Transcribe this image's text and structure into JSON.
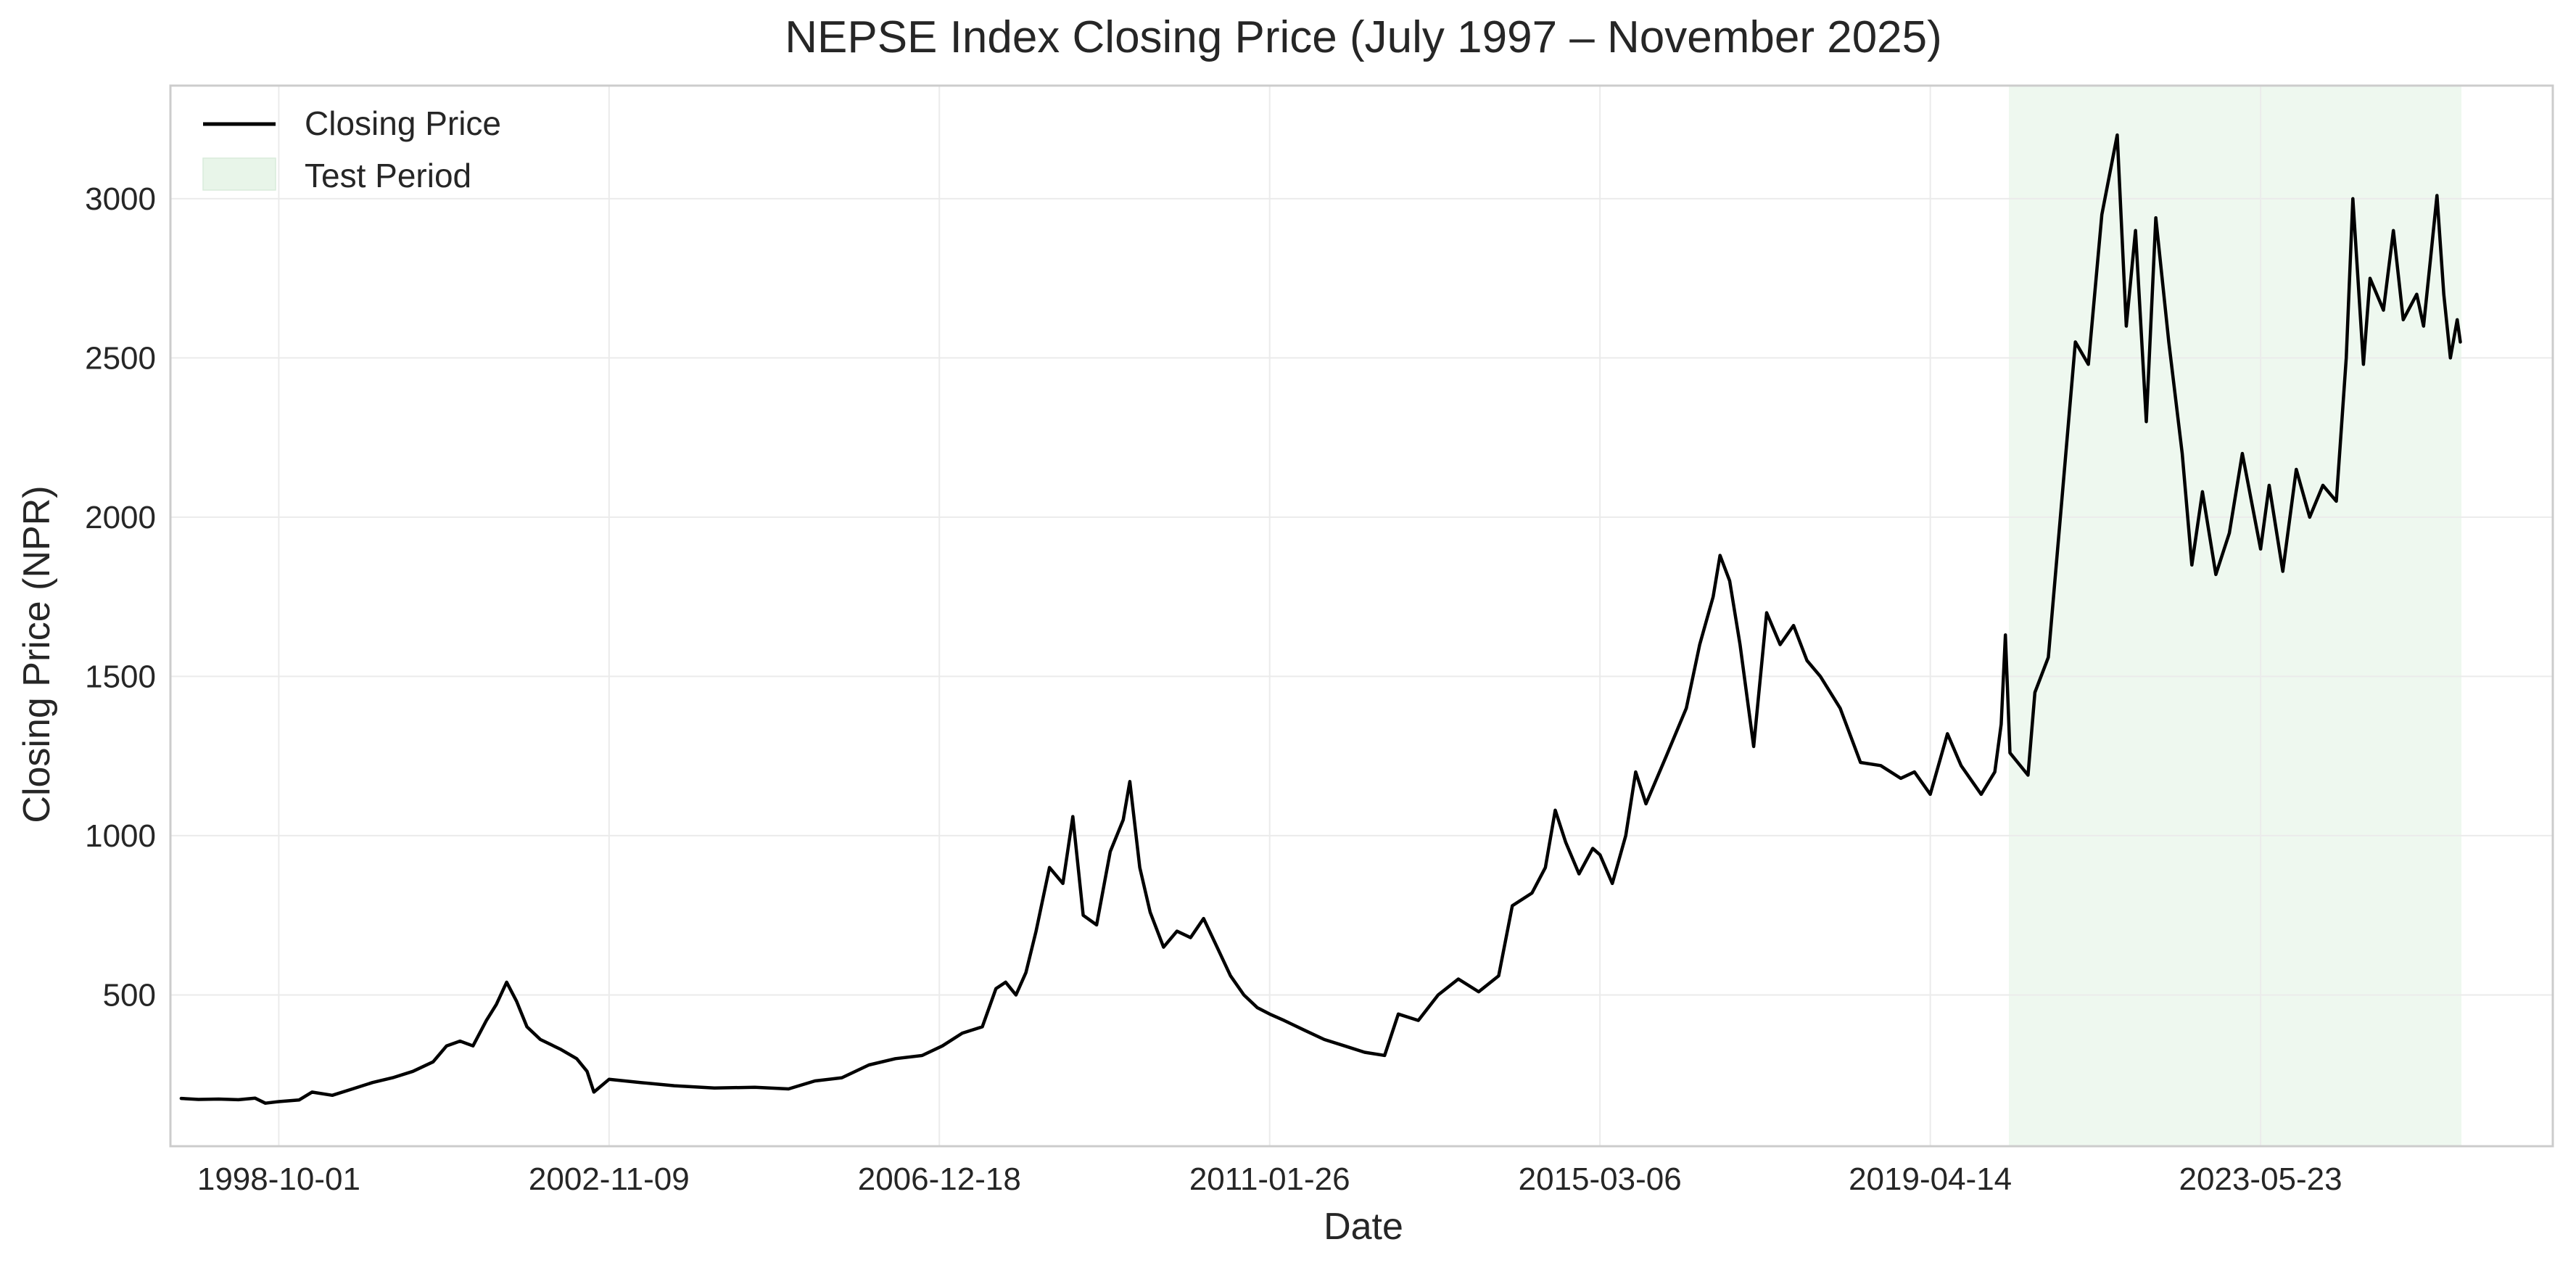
{
  "chart_data": {
    "type": "line",
    "title": "NEPSE Index Closing Price (July 1997 – November 2025)",
    "xlabel": "Date",
    "ylabel": "Closing Price (NPR)",
    "xlim": [
      "1997-05-27",
      "2027-01-09"
    ],
    "ylim": [
      25,
      3355
    ],
    "x_ticks": [
      "1998-10-01",
      "2002-11-09",
      "2006-12-18",
      "2011-01-26",
      "2015-03-06",
      "2019-04-14",
      "2023-05-23"
    ],
    "y_ticks": [
      500,
      1000,
      1500,
      2000,
      2500,
      3000
    ],
    "grid": true,
    "legend_position": "top-left",
    "legend": [
      {
        "label": "Closing Price",
        "kind": "line",
        "color": "#000000"
      },
      {
        "label": "Test Period",
        "kind": "patch",
        "color": "#e8f5e9"
      }
    ],
    "shaded_regions": [
      {
        "label": "Test Period",
        "start": "2020-04-05",
        "end": "2025-11-20",
        "color": "#e8f5e9"
      }
    ],
    "series": [
      {
        "name": "Closing Price",
        "color": "#000000",
        "points": [
          [
            "1997-07-15",
            175
          ],
          [
            "1997-10-01",
            172
          ],
          [
            "1998-01-01",
            173
          ],
          [
            "1998-04-01",
            171
          ],
          [
            "1998-06-15",
            176
          ],
          [
            "1998-08-01",
            160
          ],
          [
            "1998-10-01",
            165
          ],
          [
            "1999-01-01",
            170
          ],
          [
            "1999-03-01",
            195
          ],
          [
            "1999-06-01",
            185
          ],
          [
            "1999-09-01",
            205
          ],
          [
            "1999-12-01",
            225
          ],
          [
            "2000-03-01",
            240
          ],
          [
            "2000-06-01",
            260
          ],
          [
            "2000-09-01",
            290
          ],
          [
            "2000-11-01",
            340
          ],
          [
            "2001-01-01",
            355
          ],
          [
            "2001-03-01",
            340
          ],
          [
            "2001-05-01",
            420
          ],
          [
            "2001-06-15",
            470
          ],
          [
            "2001-08-01",
            540
          ],
          [
            "2001-09-15",
            480
          ],
          [
            "2001-11-01",
            400
          ],
          [
            "2002-01-01",
            360
          ],
          [
            "2002-04-01",
            330
          ],
          [
            "2002-06-15",
            300
          ],
          [
            "2002-08-01",
            260
          ],
          [
            "2002-09-01",
            195
          ],
          [
            "2002-11-09",
            235
          ],
          [
            "2003-04-01",
            225
          ],
          [
            "2003-09-01",
            215
          ],
          [
            "2004-03-01",
            208
          ],
          [
            "2004-09-01",
            210
          ],
          [
            "2005-02-01",
            205
          ],
          [
            "2005-06-01",
            230
          ],
          [
            "2005-10-01",
            240
          ],
          [
            "2006-02-01",
            280
          ],
          [
            "2006-06-01",
            300
          ],
          [
            "2006-10-01",
            310
          ],
          [
            "2007-01-01",
            340
          ],
          [
            "2007-04-01",
            380
          ],
          [
            "2007-07-01",
            400
          ],
          [
            "2007-09-01",
            520
          ],
          [
            "2007-10-15",
            540
          ],
          [
            "2007-12-01",
            500
          ],
          [
            "2008-01-15",
            570
          ],
          [
            "2008-03-01",
            700
          ],
          [
            "2008-05-01",
            900
          ],
          [
            "2008-07-01",
            850
          ],
          [
            "2008-08-15",
            1060
          ],
          [
            "2008-10-01",
            750
          ],
          [
            "2008-12-01",
            720
          ],
          [
            "2009-02-01",
            950
          ],
          [
            "2009-04-01",
            1050
          ],
          [
            "2009-05-01",
            1170
          ],
          [
            "2009-06-15",
            900
          ],
          [
            "2009-08-01",
            760
          ],
          [
            "2009-10-01",
            650
          ],
          [
            "2009-12-01",
            700
          ],
          [
            "2010-02-01",
            680
          ],
          [
            "2010-04-01",
            740
          ],
          [
            "2010-06-01",
            650
          ],
          [
            "2010-08-01",
            560
          ],
          [
            "2010-10-01",
            500
          ],
          [
            "2010-12-01",
            460
          ],
          [
            "2011-01-26",
            440
          ],
          [
            "2011-04-01",
            420
          ],
          [
            "2011-07-01",
            390
          ],
          [
            "2011-10-01",
            360
          ],
          [
            "2012-01-01",
            340
          ],
          [
            "2012-04-01",
            320
          ],
          [
            "2012-07-01",
            310
          ],
          [
            "2012-09-01",
            440
          ],
          [
            "2012-12-01",
            420
          ],
          [
            "2013-03-01",
            500
          ],
          [
            "2013-06-01",
            550
          ],
          [
            "2013-09-01",
            510
          ],
          [
            "2013-12-01",
            560
          ],
          [
            "2014-02-01",
            780
          ],
          [
            "2014-05-01",
            820
          ],
          [
            "2014-07-01",
            900
          ],
          [
            "2014-08-15",
            1080
          ],
          [
            "2014-10-01",
            980
          ],
          [
            "2014-12-01",
            880
          ],
          [
            "2015-02-01",
            960
          ],
          [
            "2015-03-06",
            940
          ],
          [
            "2015-05-01",
            850
          ],
          [
            "2015-07-01",
            1000
          ],
          [
            "2015-08-15",
            1200
          ],
          [
            "2015-10-01",
            1100
          ],
          [
            "2016-01-01",
            1250
          ],
          [
            "2016-04-01",
            1400
          ],
          [
            "2016-06-01",
            1600
          ],
          [
            "2016-08-01",
            1750
          ],
          [
            "2016-09-01",
            1880
          ],
          [
            "2016-10-15",
            1800
          ],
          [
            "2016-12-01",
            1600
          ],
          [
            "2017-02-01",
            1280
          ],
          [
            "2017-04-01",
            1700
          ],
          [
            "2017-06-01",
            1600
          ],
          [
            "2017-08-01",
            1660
          ],
          [
            "2017-10-01",
            1550
          ],
          [
            "2017-12-01",
            1500
          ],
          [
            "2018-03-01",
            1400
          ],
          [
            "2018-06-01",
            1230
          ],
          [
            "2018-09-01",
            1220
          ],
          [
            "2018-12-01",
            1180
          ],
          [
            "2019-02-01",
            1200
          ],
          [
            "2019-04-14",
            1130
          ],
          [
            "2019-07-01",
            1320
          ],
          [
            "2019-09-01",
            1220
          ],
          [
            "2019-12-01",
            1130
          ],
          [
            "2020-02-01",
            1200
          ],
          [
            "2020-03-01",
            1350
          ],
          [
            "2020-03-20",
            1630
          ],
          [
            "2020-04-10",
            1260
          ],
          [
            "2020-07-01",
            1190
          ],
          [
            "2020-08-01",
            1450
          ],
          [
            "2020-10-01",
            1560
          ],
          [
            "2020-12-01",
            2050
          ],
          [
            "2021-02-01",
            2550
          ],
          [
            "2021-04-01",
            2480
          ],
          [
            "2021-06-01",
            2950
          ],
          [
            "2021-08-10",
            3200
          ],
          [
            "2021-09-20",
            2600
          ],
          [
            "2021-11-01",
            2900
          ],
          [
            "2021-12-20",
            2300
          ],
          [
            "2022-02-01",
            2940
          ],
          [
            "2022-04-01",
            2550
          ],
          [
            "2022-06-01",
            2200
          ],
          [
            "2022-07-15",
            1850
          ],
          [
            "2022-09-01",
            2080
          ],
          [
            "2022-11-01",
            1820
          ],
          [
            "2023-01-01",
            1950
          ],
          [
            "2023-03-01",
            2200
          ],
          [
            "2023-05-23",
            1900
          ],
          [
            "2023-07-01",
            2100
          ],
          [
            "2023-09-01",
            1830
          ],
          [
            "2023-11-01",
            2150
          ],
          [
            "2024-01-01",
            2000
          ],
          [
            "2024-03-01",
            2100
          ],
          [
            "2024-05-01",
            2050
          ],
          [
            "2024-06-15",
            2500
          ],
          [
            "2024-07-15",
            3000
          ],
          [
            "2024-09-01",
            2480
          ],
          [
            "2024-10-01",
            2750
          ],
          [
            "2024-12-01",
            2650
          ],
          [
            "2025-01-15",
            2900
          ],
          [
            "2025-03-01",
            2620
          ],
          [
            "2025-05-01",
            2700
          ],
          [
            "2025-06-01",
            2600
          ],
          [
            "2025-07-01",
            2800
          ],
          [
            "2025-08-01",
            3010
          ],
          [
            "2025-09-01",
            2700
          ],
          [
            "2025-10-01",
            2500
          ],
          [
            "2025-11-01",
            2620
          ],
          [
            "2025-11-15",
            2550
          ]
        ]
      }
    ]
  }
}
